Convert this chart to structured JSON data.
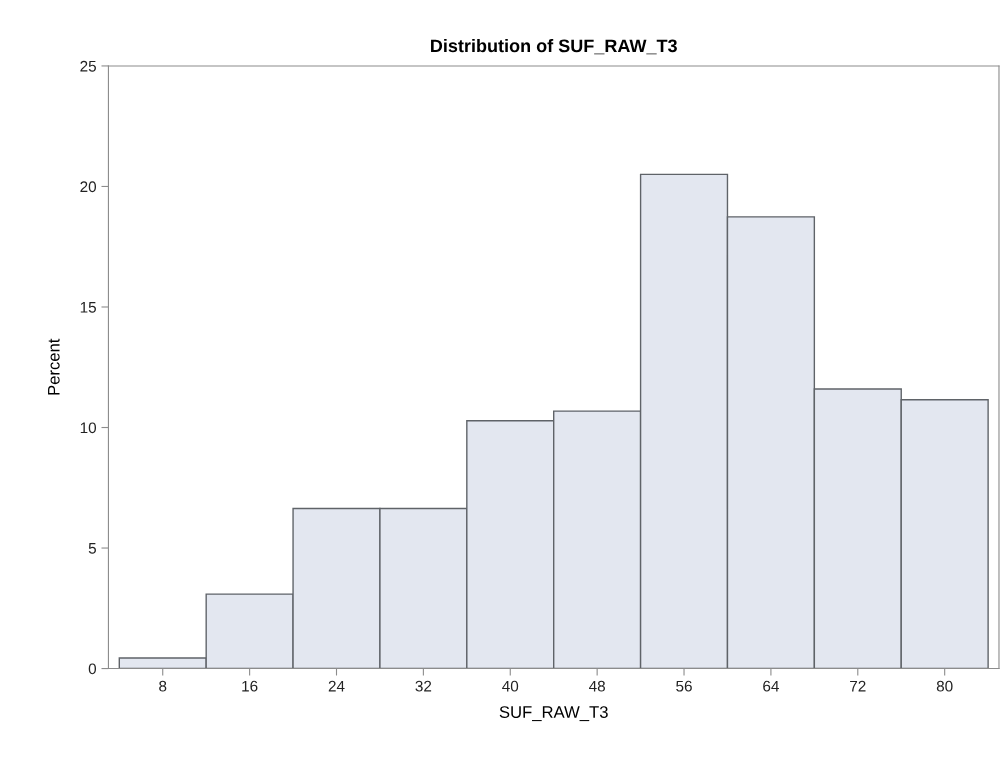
{
  "chart_data": {
    "type": "histogram",
    "title": "Distribution of SUF_RAW_T3",
    "xlabel": "SUF_RAW_T3",
    "ylabel": "Percent",
    "bins": [
      4,
      12,
      20,
      28,
      36,
      44,
      52,
      60,
      68,
      76,
      84
    ],
    "values": [
      0.44,
      3.09,
      6.64,
      6.64,
      10.28,
      10.68,
      20.5,
      18.74,
      11.6,
      11.15
    ],
    "color": "#e3e7f0",
    "xlim": [
      3,
      85
    ],
    "xticks": [
      8,
      16,
      24,
      32,
      40,
      48,
      56,
      64,
      72,
      80
    ],
    "ylim": [
      0,
      25
    ],
    "yticks": [
      0,
      5,
      10,
      15,
      20,
      25
    ],
    "grid": false
  }
}
